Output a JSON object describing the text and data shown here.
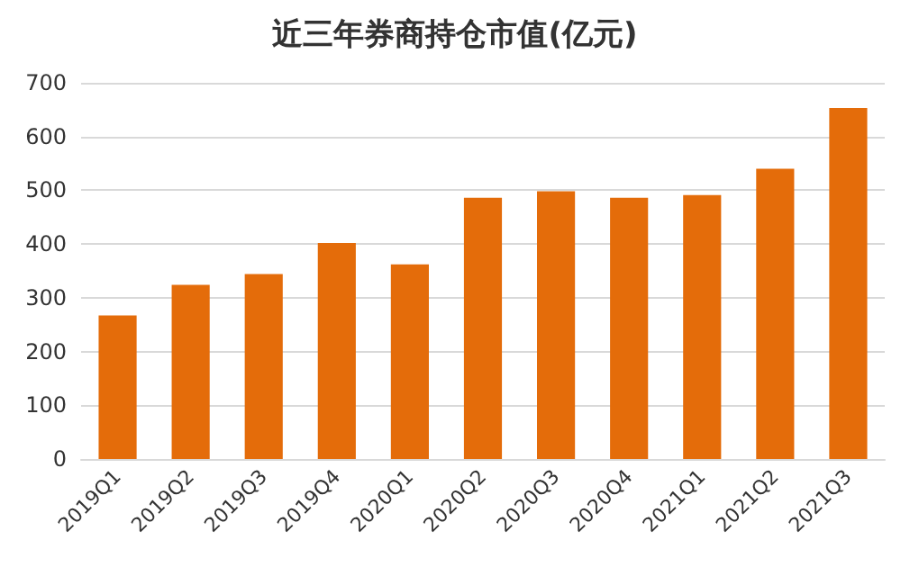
{
  "chart_data": {
    "type": "bar",
    "title": "近三年券商持仓市值(亿元)",
    "categories": [
      "2019Q1",
      "2019Q2",
      "2019Q3",
      "2019Q4",
      "2020Q1",
      "2020Q2",
      "2020Q3",
      "2020Q4",
      "2021Q1",
      "2021Q2",
      "2021Q3"
    ],
    "values": [
      267,
      324,
      344,
      402,
      362,
      486,
      498,
      486,
      491,
      540,
      653
    ],
    "color": "#e46c0a",
    "ylim": [
      0,
      700
    ],
    "yticks": [
      0,
      100,
      200,
      300,
      400,
      500,
      600,
      700
    ],
    "grid": "y"
  }
}
